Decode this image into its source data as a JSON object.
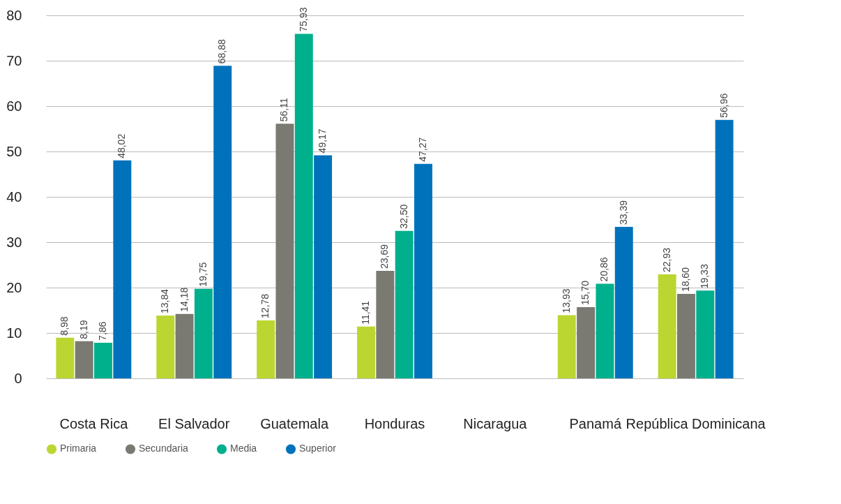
{
  "chart_data": {
    "type": "bar",
    "categories": [
      "Costa Rica",
      "El Salvador",
      "Guatemala",
      "Honduras",
      "Nicaragua",
      "Panamá",
      "República Dominicana"
    ],
    "series": [
      {
        "name": "Primaria",
        "color": "#bcd631",
        "values": [
          8.98,
          13.84,
          12.78,
          11.41,
          null,
          13.93,
          22.93
        ],
        "value_labels": [
          "8,98",
          "13,84",
          "12,78",
          "11,41",
          null,
          "13,93",
          "22,93"
        ]
      },
      {
        "name": "Secundaria",
        "color": "#7a7a72",
        "values": [
          8.19,
          14.18,
          56.11,
          23.69,
          null,
          15.7,
          18.6
        ],
        "value_labels": [
          "8,19",
          "14,18",
          "56,11",
          "23,69",
          null,
          "15,70",
          "18,60"
        ]
      },
      {
        "name": "Media",
        "color": "#00b08c",
        "values": [
          7.86,
          19.75,
          75.93,
          32.5,
          null,
          20.86,
          19.33
        ],
        "value_labels": [
          "7,86",
          "19,75",
          "75,93",
          "32,50",
          null,
          "20,86",
          "19,33"
        ]
      },
      {
        "name": "Superior",
        "color": "#0072bc",
        "values": [
          48.02,
          68.88,
          49.17,
          47.27,
          null,
          33.39,
          56.96
        ],
        "value_labels": [
          "48,02",
          "68,88",
          "49,17",
          "47,27",
          null,
          "33,39",
          "56,96"
        ]
      }
    ],
    "ylim": [
      0,
      80
    ],
    "yticks": [
      0,
      10,
      20,
      30,
      40,
      50,
      60,
      70,
      80
    ],
    "grid": "y",
    "legend": "bottom left"
  }
}
